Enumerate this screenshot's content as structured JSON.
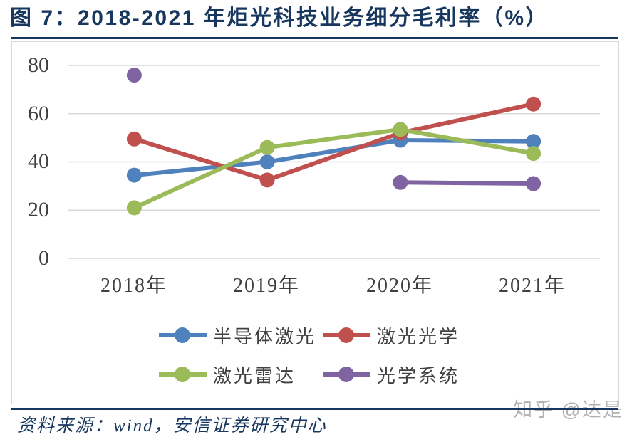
{
  "page": {
    "title": "图 7：2018-2021 年炬光科技业务细分毛利率（%）",
    "source_note": "资料来源：wind，安信证券研究中心",
    "watermark": "知乎 @达是"
  },
  "colors": {
    "accent_navy": "#17375E",
    "grid": "#D9D9D9",
    "axis_text": "#3F3F3F",
    "chart_border": "#D8D8D8"
  },
  "chart_data": {
    "type": "line",
    "title": "2018-2021 年炬光科技业务细分毛利率（%）",
    "categories": [
      "2018年",
      "2019年",
      "2020年",
      "2021年"
    ],
    "series": [
      {
        "name": "半导体激光",
        "color": "#4F81BD",
        "values": [
          34.5,
          40,
          49,
          48.5
        ]
      },
      {
        "name": "激光光学",
        "color": "#C0504D",
        "values": [
          49.5,
          32.5,
          52,
          64
        ]
      },
      {
        "name": "激光雷达",
        "color": "#9BBB59",
        "values": [
          21,
          46,
          53.5,
          43.5
        ]
      },
      {
        "name": "光学系统",
        "color": "#8064A2",
        "values": [
          76,
          null,
          31.5,
          31
        ]
      }
    ],
    "ylim": [
      0,
      80
    ],
    "yticks": [
      0,
      20,
      40,
      60,
      80
    ],
    "xlabel": "",
    "ylabel": "",
    "grid": true,
    "legend_position": "bottom-inside",
    "marker": "circle"
  }
}
